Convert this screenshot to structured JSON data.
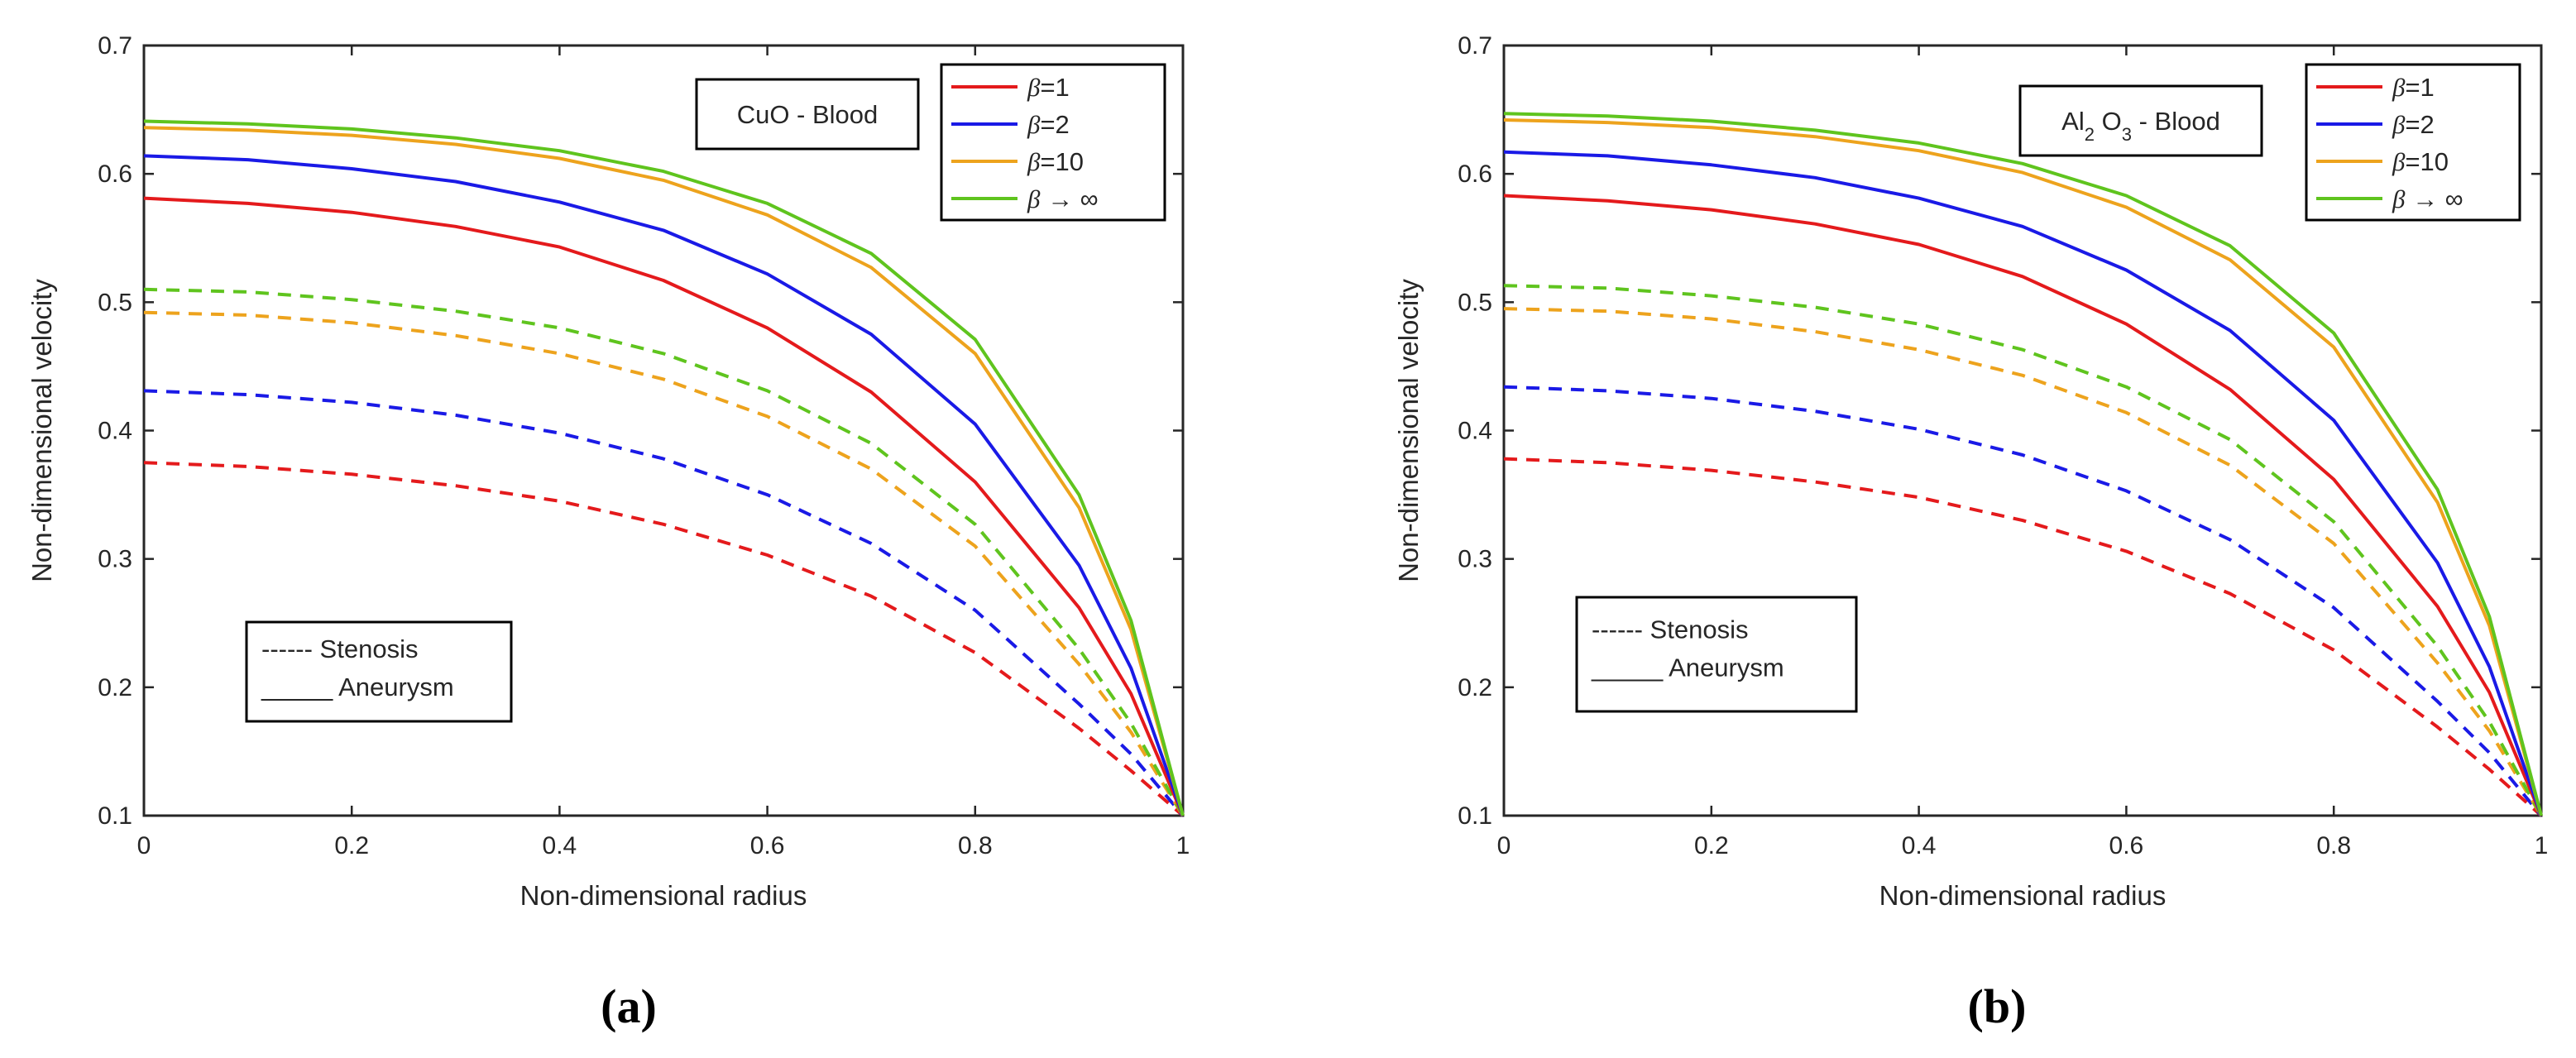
{
  "chart_data": [
    {
      "type": "line",
      "panel_label": "(a)",
      "xlabel": "Non-dimensional radius",
      "ylabel": "Non-dimensional velocity",
      "xlim": [
        0,
        1
      ],
      "ylim": [
        0.1,
        0.7
      ],
      "xticks": [
        "0",
        "0.2",
        "0.4",
        "0.6",
        "0.8",
        "1"
      ],
      "yticks": [
        "0.1",
        "0.2",
        "0.3",
        "0.4",
        "0.5",
        "0.6",
        "0.7"
      ],
      "annotation": "CuO - Blood",
      "legend": [
        "β=1",
        "β=2",
        "β=10",
        "β → ∞"
      ],
      "legend_position": "top-right",
      "style_legend": {
        "dashed": "------ Stenosis",
        "solid": "_____ Aneurysm"
      },
      "x": [
        0,
        0.1,
        0.2,
        0.3,
        0.4,
        0.5,
        0.6,
        0.7,
        0.8,
        0.9,
        0.95,
        1.0
      ],
      "series": [
        {
          "name": "β=1",
          "condition": "Aneurysm",
          "color": "#e41a1c",
          "dash": "solid",
          "values": [
            0.581,
            0.577,
            0.57,
            0.559,
            0.543,
            0.517,
            0.48,
            0.43,
            0.36,
            0.262,
            0.195,
            0.1
          ]
        },
        {
          "name": "β=2",
          "condition": "Aneurysm",
          "color": "#1a1ae6",
          "dash": "solid",
          "values": [
            0.614,
            0.611,
            0.604,
            0.594,
            0.578,
            0.556,
            0.522,
            0.475,
            0.405,
            0.295,
            0.215,
            0.1
          ]
        },
        {
          "name": "β=10",
          "condition": "Aneurysm",
          "color": "#eda31d",
          "dash": "solid",
          "values": [
            0.636,
            0.634,
            0.63,
            0.623,
            0.612,
            0.595,
            0.568,
            0.527,
            0.46,
            0.34,
            0.245,
            0.1
          ]
        },
        {
          "name": "β → ∞",
          "condition": "Aneurysm",
          "color": "#5fc41e",
          "dash": "solid",
          "values": [
            0.641,
            0.639,
            0.635,
            0.628,
            0.618,
            0.602,
            0.577,
            0.538,
            0.471,
            0.35,
            0.252,
            0.1
          ]
        },
        {
          "name": "β=1",
          "condition": "Stenosis",
          "color": "#e41a1c",
          "dash": "dashed",
          "values": [
            0.375,
            0.372,
            0.366,
            0.357,
            0.345,
            0.327,
            0.303,
            0.271,
            0.227,
            0.168,
            0.135,
            0.1
          ]
        },
        {
          "name": "β=2",
          "condition": "Stenosis",
          "color": "#1a1ae6",
          "dash": "dashed",
          "values": [
            0.431,
            0.428,
            0.422,
            0.412,
            0.398,
            0.378,
            0.35,
            0.312,
            0.26,
            0.187,
            0.148,
            0.1
          ]
        },
        {
          "name": "β=10",
          "condition": "Stenosis",
          "color": "#eda31d",
          "dash": "dashed",
          "values": [
            0.492,
            0.49,
            0.484,
            0.474,
            0.46,
            0.44,
            0.411,
            0.37,
            0.31,
            0.218,
            0.165,
            0.1
          ]
        },
        {
          "name": "β → ∞",
          "condition": "Stenosis",
          "color": "#5fc41e",
          "dash": "dashed",
          "values": [
            0.51,
            0.508,
            0.502,
            0.493,
            0.48,
            0.46,
            0.431,
            0.39,
            0.327,
            0.23,
            0.172,
            0.1
          ]
        }
      ]
    },
    {
      "type": "line",
      "panel_label": "(b)",
      "xlabel": "Non-dimensional radius",
      "ylabel": "Non-dimensional velocity",
      "xlim": [
        0,
        1
      ],
      "ylim": [
        0.1,
        0.7
      ],
      "xticks": [
        "0",
        "0.2",
        "0.4",
        "0.6",
        "0.8",
        "1"
      ],
      "yticks": [
        "0.1",
        "0.2",
        "0.3",
        "0.4",
        "0.5",
        "0.6",
        "0.7"
      ],
      "annotation": {
        "base1": "Al",
        "sub1": "2",
        "base2": " O",
        "sub2": "3",
        "rest": " - Blood"
      },
      "legend": [
        "β=1",
        "β=2",
        "β=10",
        "β → ∞"
      ],
      "legend_position": "top-right",
      "style_legend": {
        "dashed": "------ Stenosis",
        "solid": "_____ Aneurysm"
      },
      "x": [
        0,
        0.1,
        0.2,
        0.3,
        0.4,
        0.5,
        0.6,
        0.7,
        0.8,
        0.9,
        0.95,
        1.0
      ],
      "series": [
        {
          "name": "β=1",
          "condition": "Aneurysm",
          "color": "#e41a1c",
          "dash": "solid",
          "values": [
            0.583,
            0.579,
            0.572,
            0.561,
            0.545,
            0.52,
            0.483,
            0.432,
            0.362,
            0.263,
            0.196,
            0.1
          ]
        },
        {
          "name": "β=2",
          "condition": "Aneurysm",
          "color": "#1a1ae6",
          "dash": "solid",
          "values": [
            0.617,
            0.614,
            0.607,
            0.597,
            0.581,
            0.559,
            0.525,
            0.478,
            0.408,
            0.297,
            0.216,
            0.1
          ]
        },
        {
          "name": "β=10",
          "condition": "Aneurysm",
          "color": "#eda31d",
          "dash": "solid",
          "values": [
            0.642,
            0.64,
            0.636,
            0.629,
            0.618,
            0.601,
            0.574,
            0.533,
            0.465,
            0.344,
            0.248,
            0.1
          ]
        },
        {
          "name": "β → ∞",
          "condition": "Aneurysm",
          "color": "#5fc41e",
          "dash": "solid",
          "values": [
            0.647,
            0.645,
            0.641,
            0.634,
            0.624,
            0.608,
            0.583,
            0.544,
            0.476,
            0.354,
            0.255,
            0.1
          ]
        },
        {
          "name": "β=1",
          "condition": "Stenosis",
          "color": "#e41a1c",
          "dash": "dashed",
          "values": [
            0.378,
            0.375,
            0.369,
            0.36,
            0.348,
            0.33,
            0.306,
            0.273,
            0.229,
            0.169,
            0.136,
            0.1
          ]
        },
        {
          "name": "β=2",
          "condition": "Stenosis",
          "color": "#1a1ae6",
          "dash": "dashed",
          "values": [
            0.434,
            0.431,
            0.425,
            0.415,
            0.401,
            0.381,
            0.353,
            0.315,
            0.262,
            0.189,
            0.149,
            0.1
          ]
        },
        {
          "name": "β=10",
          "condition": "Stenosis",
          "color": "#eda31d",
          "dash": "dashed",
          "values": [
            0.495,
            0.493,
            0.487,
            0.477,
            0.463,
            0.443,
            0.414,
            0.373,
            0.312,
            0.219,
            0.166,
            0.1
          ]
        },
        {
          "name": "β → ∞",
          "condition": "Stenosis",
          "color": "#5fc41e",
          "dash": "dashed",
          "values": [
            0.513,
            0.511,
            0.505,
            0.496,
            0.483,
            0.463,
            0.434,
            0.393,
            0.329,
            0.232,
            0.173,
            0.1
          ]
        }
      ]
    }
  ]
}
